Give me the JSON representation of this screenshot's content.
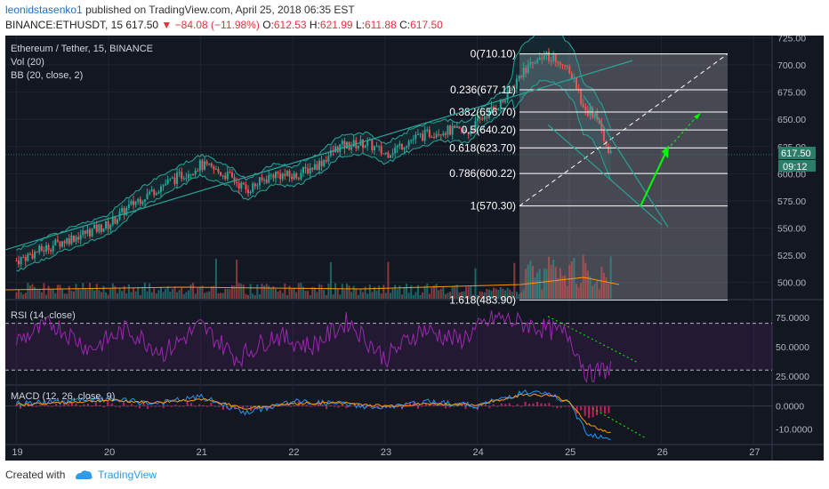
{
  "header": {
    "author": "leonidstasenko1",
    "published": "published on TradingView.com, April 25, 2018 06:35 EST",
    "symbol": "BINANCE:ETHUSDT, 15",
    "last": "617.50",
    "change": "−84.08 (−11.98%)",
    "o_label": "O:",
    "o_value": "612.53",
    "h_label": "H:",
    "h_value": "621.99",
    "l_label": "L:",
    "l_value": "611.88",
    "c_label": "C:",
    "c_value": "617.50"
  },
  "panes": {
    "main_legend": [
      "Ethereum / Tether, 15, BINANCE",
      "Vol (20)",
      "BB (20, close, 2)"
    ],
    "rsi_legend": "RSI (14, close)",
    "macd_legend": "MACD (12, 26, close, 9)",
    "price_badge": "617.50",
    "time_badge": "09:12"
  },
  "footer": {
    "created": "Created with",
    "brand": "TradingView"
  },
  "colors": {
    "background": "#131722",
    "up": "#26a69a",
    "down": "#ef5350",
    "fib": "#ffffff",
    "rsi": "#9c27b0",
    "macd": "#2196f3",
    "signal": "#ff9800",
    "arrow": "#00ff00",
    "price_badge": "#2e7d6a"
  },
  "chart_data": [
    {
      "type": "line",
      "title": "Ethereum / Tether, 15, BINANCE",
      "x_ticks": [
        "19",
        "20",
        "21",
        "22",
        "23",
        "24",
        "25",
        "26",
        "27"
      ],
      "y_ticks": [
        "725.00",
        "700.00",
        "675.00",
        "650.00",
        "625.00",
        "600.00",
        "575.00",
        "550.00",
        "525.00",
        "500.00"
      ],
      "ylim": [
        485,
        727
      ],
      "x": [
        19.0,
        19.5,
        20.0,
        20.3,
        20.6,
        21.0,
        21.3,
        21.5,
        21.8,
        22.0,
        22.3,
        22.5,
        22.8,
        23.0,
        23.3,
        23.6,
        23.9,
        24.1,
        24.3,
        24.5,
        24.7,
        24.9,
        25.05,
        25.15,
        25.25,
        25.35,
        25.45
      ],
      "close": [
        520,
        538,
        553,
        575,
        590,
        608,
        598,
        585,
        600,
        597,
        610,
        625,
        628,
        618,
        632,
        640,
        638,
        655,
        668,
        695,
        710,
        705,
        690,
        660,
        655,
        640,
        617.5
      ],
      "fibonacci": [
        {
          "label": "0(710.10)",
          "value": 710.1
        },
        {
          "label": "0.236(677.11)",
          "value": 677.11
        },
        {
          "label": "0.382(656.70)",
          "value": 656.7
        },
        {
          "label": "0.5(640.20)",
          "value": 640.2
        },
        {
          "label": "0.618(623.70)",
          "value": 623.7
        },
        {
          "label": "0.786(600.22)",
          "value": 600.22
        },
        {
          "label": "1(570.30)",
          "value": 570.3
        },
        {
          "label": "1.618(483.90)",
          "value": 483.9
        }
      ],
      "last_price": 617.5,
      "series": [
        {
          "name": "BB (20, close, 2)"
        },
        {
          "name": "Vol (20)"
        }
      ]
    },
    {
      "type": "line",
      "title": "RSI (14, close)",
      "y_ticks": [
        "75.0000",
        "50.0000",
        "25.0000"
      ],
      "ylim": [
        18,
        88
      ],
      "bands": [
        70,
        30
      ],
      "x": [
        19.0,
        19.4,
        19.8,
        20.2,
        20.6,
        21.0,
        21.4,
        21.8,
        22.2,
        22.6,
        23.0,
        23.4,
        23.8,
        24.2,
        24.6,
        25.0,
        25.2,
        25.45
      ],
      "values": [
        55,
        70,
        48,
        65,
        45,
        68,
        40,
        60,
        50,
        72,
        40,
        65,
        55,
        75,
        68,
        60,
        25,
        32
      ]
    },
    {
      "type": "line",
      "title": "MACD (12, 26, close, 9)",
      "y_ticks": [
        "0.0000",
        "-10.0000"
      ],
      "ylim": [
        -16,
        8
      ],
      "x": [
        19.0,
        19.5,
        20.0,
        20.5,
        21.0,
        21.5,
        22.0,
        22.5,
        23.0,
        23.5,
        24.0,
        24.5,
        24.8,
        25.0,
        25.2,
        25.45
      ],
      "macd": [
        1,
        2,
        3,
        1,
        4,
        -3,
        2,
        1,
        -1,
        2,
        0,
        6,
        5,
        1,
        -12,
        -14
      ],
      "signal": [
        0.5,
        1.5,
        2.5,
        1.5,
        3,
        -1,
        1,
        1.5,
        0,
        1,
        0.5,
        5,
        4.5,
        2,
        -8,
        -12
      ]
    }
  ]
}
